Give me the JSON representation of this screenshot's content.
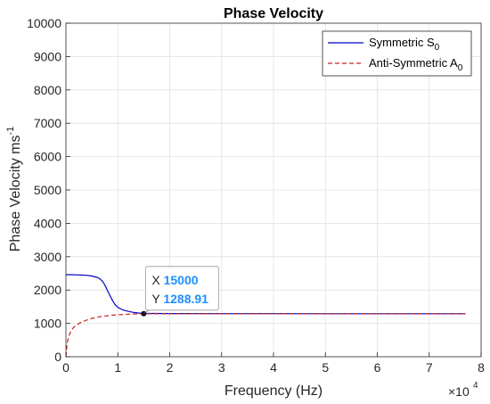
{
  "chart_data": {
    "type": "line",
    "title": "Phase Velocity",
    "xlabel": "Frequency (Hz)",
    "ylabel_main": "Phase Velocity ms",
    "ylabel_exp": "-1",
    "x_exponent_base": "×10",
    "x_exponent_power": "4",
    "xlim": [
      0,
      80000
    ],
    "ylim": [
      0,
      10000
    ],
    "x_ticks": [
      0,
      10000,
      20000,
      30000,
      40000,
      50000,
      60000,
      70000,
      80000
    ],
    "x_tick_labels": [
      "0",
      "1",
      "2",
      "3",
      "4",
      "5",
      "6",
      "7",
      "8"
    ],
    "y_ticks": [
      0,
      1000,
      2000,
      3000,
      4000,
      5000,
      6000,
      7000,
      8000,
      9000,
      10000
    ],
    "y_tick_labels": [
      "0",
      "1000",
      "2000",
      "3000",
      "4000",
      "5000",
      "6000",
      "7000",
      "8000",
      "9000",
      "10000"
    ],
    "grid": true,
    "legend_position": "top-right",
    "series": [
      {
        "name": "Symmetric S0",
        "legend_main": "Symmetric S",
        "legend_sub": "0",
        "color": "#0000cc",
        "style": "solid",
        "x": [
          0,
          1000,
          2000,
          3000,
          4000,
          5000,
          6000,
          6500,
          7000,
          7500,
          8000,
          8500,
          9000,
          9500,
          10000,
          11000,
          12000,
          13000,
          14000,
          15000,
          20000,
          30000,
          40000,
          50000,
          60000,
          70000,
          77000
        ],
        "y": [
          2460,
          2460,
          2455,
          2450,
          2440,
          2420,
          2380,
          2340,
          2270,
          2150,
          1990,
          1830,
          1680,
          1560,
          1480,
          1400,
          1360,
          1330,
          1310,
          1300,
          1295,
          1292,
          1291,
          1290,
          1290,
          1290,
          1290
        ]
      },
      {
        "name": "Anti-Symmetric A0",
        "legend_main": "Anti-Symmetric A",
        "legend_sub": "0",
        "color": "#cc2222",
        "style": "dashed",
        "x": [
          0,
          200,
          500,
          1000,
          1500,
          2000,
          3000,
          4000,
          5000,
          6000,
          7000,
          8000,
          9000,
          10000,
          11000,
          12000,
          13000,
          14000,
          15000,
          20000,
          30000,
          40000,
          50000,
          60000,
          70000,
          77000
        ],
        "y": [
          0,
          380,
          590,
          780,
          880,
          950,
          1040,
          1100,
          1150,
          1185,
          1210,
          1230,
          1245,
          1258,
          1268,
          1275,
          1280,
          1285,
          1289,
          1290,
          1290,
          1290,
          1290,
          1290,
          1290,
          1290
        ]
      }
    ],
    "datatip": {
      "x": 15000,
      "y": 1288.91,
      "x_label": "X",
      "y_label": "Y",
      "x_text": "15000",
      "y_text": "1288.91"
    }
  }
}
